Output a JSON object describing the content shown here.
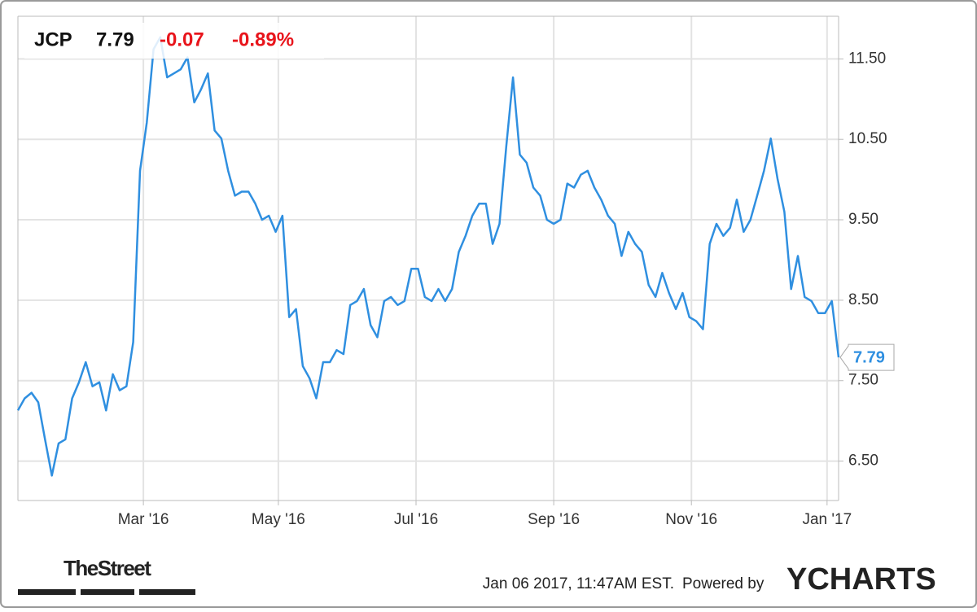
{
  "chart_data": {
    "type": "line",
    "ticker": "JCP",
    "price": "7.79",
    "change": "-0.07",
    "change_pct": "-0.89%",
    "series": [
      {
        "name": "JCP",
        "color": "#2f8fe0",
        "values": [
          7.13,
          7.28,
          7.35,
          7.23,
          6.77,
          6.32,
          6.72,
          6.77,
          7.28,
          7.48,
          7.73,
          7.43,
          7.48,
          7.13,
          7.58,
          7.38,
          7.43,
          7.98,
          10.11,
          10.71,
          11.62,
          11.77,
          11.27,
          11.32,
          11.37,
          11.52,
          10.96,
          11.12,
          11.32,
          10.61,
          10.51,
          10.11,
          9.8,
          9.85,
          9.85,
          9.7,
          9.5,
          9.55,
          9.35,
          9.55,
          8.29,
          8.39,
          7.68,
          7.53,
          7.28,
          7.73,
          7.73,
          7.88,
          7.83,
          8.44,
          8.49,
          8.64,
          8.19,
          8.04,
          8.49,
          8.54,
          8.44,
          8.49,
          8.89,
          8.89,
          8.54,
          8.49,
          8.64,
          8.49,
          8.64,
          9.1,
          9.3,
          9.55,
          9.7,
          9.7,
          9.2,
          9.45,
          10.41,
          11.27,
          10.31,
          10.21,
          9.9,
          9.8,
          9.5,
          9.45,
          9.5,
          9.95,
          9.9,
          10.06,
          10.11,
          9.9,
          9.75,
          9.55,
          9.45,
          9.05,
          9.35,
          9.2,
          9.1,
          8.69,
          8.54,
          8.84,
          8.59,
          8.39,
          8.59,
          8.29,
          8.24,
          8.14,
          9.2,
          9.45,
          9.3,
          9.4,
          9.75,
          9.35,
          9.5,
          9.8,
          10.11,
          10.51,
          10.01,
          9.6,
          8.64,
          9.05,
          8.54,
          8.49,
          8.34,
          8.34,
          8.49,
          7.79
        ]
      }
    ],
    "xlim": [
      0,
      121
    ],
    "xticks": [
      {
        "value": 18.5,
        "label": "Mar '16"
      },
      {
        "value": 38.4,
        "label": "May '16"
      },
      {
        "value": 58.7,
        "label": "Jul '16"
      },
      {
        "value": 79.0,
        "label": "Sep '16"
      },
      {
        "value": 99.3,
        "label": "Nov '16"
      },
      {
        "value": 119.3,
        "label": "Jan '17"
      }
    ],
    "ylim": [
      6.01,
      12.03
    ],
    "yticks": [
      {
        "value": 6.5,
        "label": "6.50"
      },
      {
        "value": 7.5,
        "label": "7.50"
      },
      {
        "value": 8.5,
        "label": "8.50"
      },
      {
        "value": 9.5,
        "label": "9.50"
      },
      {
        "value": 10.5,
        "label": "10.50"
      },
      {
        "value": 11.5,
        "label": "11.50"
      }
    ],
    "grid": true,
    "timestamp": "Jan 06 2017, 11:47AM EST.",
    "powered_by": "Powered by",
    "brand": "YCHARTS",
    "source_logo": "TheStreet"
  }
}
